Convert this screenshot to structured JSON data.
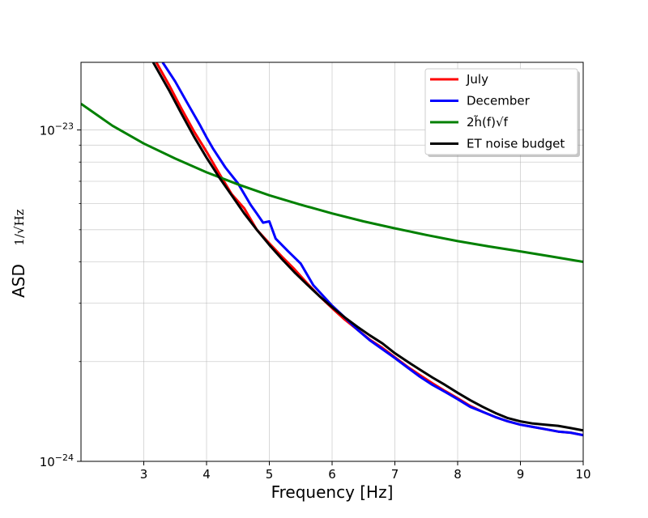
{
  "chart_data": {
    "type": "line",
    "xlabel": "Frequency [Hz]",
    "ylabel": "ASD",
    "ylabel_unit": "1/√Hz",
    "xlim": [
      2,
      10
    ],
    "ylim": [
      1e-24,
      1.6e-23
    ],
    "yscale": "log",
    "grid": true,
    "legend_position": "top-right",
    "x_ticks": [
      3,
      4,
      5,
      6,
      7,
      8,
      9,
      10
    ],
    "x_tick_labels": [
      "3",
      "4",
      "5",
      "6",
      "7",
      "8",
      "9",
      "10"
    ],
    "y_major_ticks": [
      1e-24,
      1e-23
    ],
    "y_tick_labels": {
      "base": "10",
      "exponents": [
        "−24",
        "−23"
      ]
    },
    "y_minor_ticks": [
      2e-24,
      3e-24,
      4e-24,
      5e-24,
      6e-24,
      7e-24,
      8e-24,
      9e-24
    ],
    "series": [
      {
        "name": "July",
        "color": "#ff0000",
        "x": [
          3.2,
          3.4,
          3.6,
          3.8,
          4.0,
          4.2,
          4.4,
          4.6,
          4.8,
          5.0,
          5.2,
          5.4,
          5.6,
          5.8,
          6.0,
          6.2,
          6.4,
          6.6,
          6.8,
          6.9,
          7.0,
          7.2,
          7.4,
          7.6,
          7.8,
          8.0,
          8.2,
          8.4,
          8.6,
          8.8,
          9.0,
          9.2,
          9.4,
          9.6,
          9.8,
          10.0
        ],
        "y": [
          1.6e-23,
          1.37e-23,
          1.16e-23,
          9.9e-24,
          8.6e-24,
          7.4e-24,
          6.4e-24,
          5.8e-24,
          5e-24,
          4.55e-24,
          4.15e-24,
          3.8e-24,
          3.45e-24,
          3.15e-24,
          2.9e-24,
          2.68e-24,
          2.5e-24,
          2.33e-24,
          2.2e-24,
          2.13e-24,
          2.06e-24,
          1.93e-24,
          1.82e-24,
          1.72e-24,
          1.63e-24,
          1.55e-24,
          1.47e-24,
          1.41e-24,
          1.36e-24,
          1.32e-24,
          1.29e-24,
          1.27e-24,
          1.25e-24,
          1.23e-24,
          1.22e-24,
          1.2e-24
        ]
      },
      {
        "name": "December",
        "color": "#0000ff",
        "x": [
          3.3,
          3.5,
          3.7,
          3.9,
          4.0,
          4.1,
          4.3,
          4.5,
          4.7,
          4.8,
          4.9,
          5.0,
          5.1,
          5.3,
          5.5,
          5.7,
          6.0,
          6.2,
          6.4,
          6.6,
          6.8,
          7.0,
          7.2,
          7.4,
          7.6,
          7.8,
          8.0,
          8.2,
          8.4,
          8.6,
          8.8,
          9.0,
          9.2,
          9.4,
          9.6,
          9.8,
          10.0
        ],
        "y": [
          1.6e-23,
          1.4e-23,
          1.2e-23,
          1.03e-23,
          9.5e-24,
          8.8e-24,
          7.7e-24,
          6.9e-24,
          5.95e-24,
          5.6e-24,
          5.25e-24,
          5.3e-24,
          4.7e-24,
          4.3e-24,
          3.95e-24,
          3.4e-24,
          2.95e-24,
          2.72e-24,
          2.5e-24,
          2.32e-24,
          2.18e-24,
          2.05e-24,
          1.92e-24,
          1.8e-24,
          1.7e-24,
          1.62e-24,
          1.54e-24,
          1.46e-24,
          1.41e-24,
          1.36e-24,
          1.32e-24,
          1.29e-24,
          1.27e-24,
          1.25e-24,
          1.23e-24,
          1.22e-24,
          1.2e-24
        ]
      },
      {
        "name": "2h̃(f)√f",
        "color": "#008000",
        "x": [
          2.0,
          2.5,
          3.0,
          3.5,
          4.0,
          4.5,
          5.0,
          5.5,
          6.0,
          6.5,
          7.0,
          7.5,
          8.0,
          8.5,
          9.0,
          9.5,
          10.0
        ],
        "y": [
          1.2e-23,
          1.03e-23,
          9.1e-24,
          8.2e-24,
          7.45e-24,
          6.85e-24,
          6.35e-24,
          5.95e-24,
          5.6e-24,
          5.3e-24,
          5.05e-24,
          4.82e-24,
          4.62e-24,
          4.45e-24,
          4.3e-24,
          4.15e-24,
          4e-24
        ]
      },
      {
        "name": "ET noise budget",
        "color": "#000000",
        "x": [
          3.15,
          3.4,
          3.6,
          3.8,
          4.0,
          4.2,
          4.4,
          4.6,
          4.8,
          5.0,
          5.2,
          5.4,
          5.6,
          5.8,
          6.0,
          6.2,
          6.4,
          6.6,
          6.8,
          7.0,
          7.2,
          7.4,
          7.6,
          7.8,
          8.0,
          8.2,
          8.4,
          8.6,
          8.8,
          9.0,
          9.2,
          9.4,
          9.6,
          9.8,
          10.0
        ],
        "y": [
          1.6e-23,
          1.32e-23,
          1.12e-23,
          9.55e-24,
          8.25e-24,
          7.2e-24,
          6.35e-24,
          5.6e-24,
          5e-24,
          4.5e-24,
          4.08e-24,
          3.72e-24,
          3.42e-24,
          3.15e-24,
          2.92e-24,
          2.72e-24,
          2.55e-24,
          2.4e-24,
          2.27e-24,
          2.12e-24,
          2e-24,
          1.89e-24,
          1.79e-24,
          1.7e-24,
          1.61e-24,
          1.53e-24,
          1.46e-24,
          1.4e-24,
          1.35e-24,
          1.32e-24,
          1.3e-24,
          1.29e-24,
          1.28e-24,
          1.26e-24,
          1.24e-24
        ]
      }
    ]
  }
}
